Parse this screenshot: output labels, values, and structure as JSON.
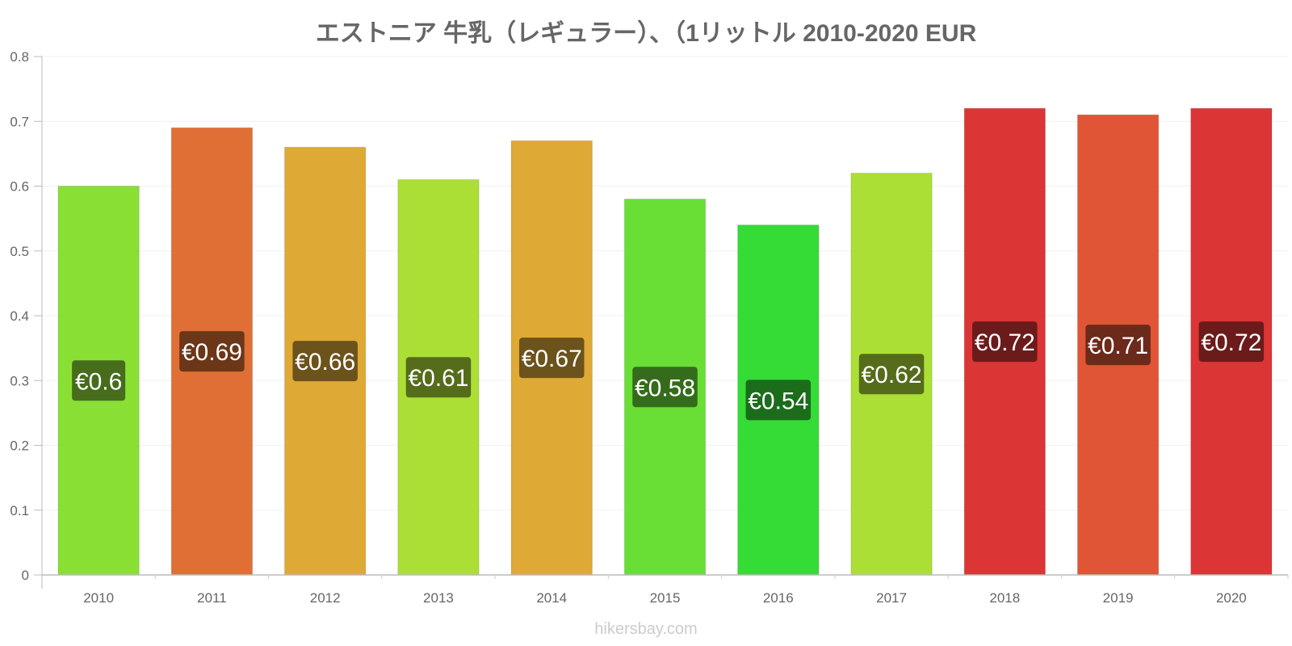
{
  "title": "エストニア 牛乳（レギュラー）、（1リットル 2010-2020 EUR",
  "watermark": "hikersbay.com",
  "chart_data": {
    "type": "bar",
    "title": "エストニア 牛乳（レギュラー）、（1リットル 2010-2020 EUR",
    "categories": [
      "2010",
      "2011",
      "2012",
      "2013",
      "2014",
      "2015",
      "2016",
      "2017",
      "2018",
      "2019",
      "2020"
    ],
    "values": [
      0.6,
      0.69,
      0.66,
      0.61,
      0.67,
      0.58,
      0.54,
      0.62,
      0.72,
      0.71,
      0.72
    ],
    "value_labels": [
      "€0.6",
      "€0.69",
      "€0.66",
      "€0.61",
      "€0.67",
      "€0.58",
      "€0.54",
      "€0.62",
      "€0.72",
      "€0.71",
      "€0.72"
    ],
    "bar_colors": [
      "#8adf35",
      "#df6f35",
      "#dfa935",
      "#acdf35",
      "#dfa935",
      "#69df35",
      "#35dc35",
      "#acdf35",
      "#dc3535",
      "#df5535",
      "#dc3535"
    ],
    "label_bg_colors": [
      "#466c1c",
      "#6c3619",
      "#6c521b",
      "#556c1b",
      "#6c521b",
      "#356c1b",
      "#1b6c1b",
      "#556c1b",
      "#6c1b1b",
      "#6c2a1b",
      "#6c1b1b"
    ],
    "xlabel": "",
    "ylabel": "",
    "ylim": [
      0,
      0.8
    ],
    "yticks": [
      0,
      0.1,
      0.2,
      0.3,
      0.4,
      0.5,
      0.6,
      0.7,
      0.8
    ],
    "ytick_labels": [
      "0",
      "0.1",
      "0.2",
      "0.3",
      "0.4",
      "0.5",
      "0.6",
      "0.7",
      "0.8"
    ],
    "grid": true,
    "legend": "none"
  }
}
